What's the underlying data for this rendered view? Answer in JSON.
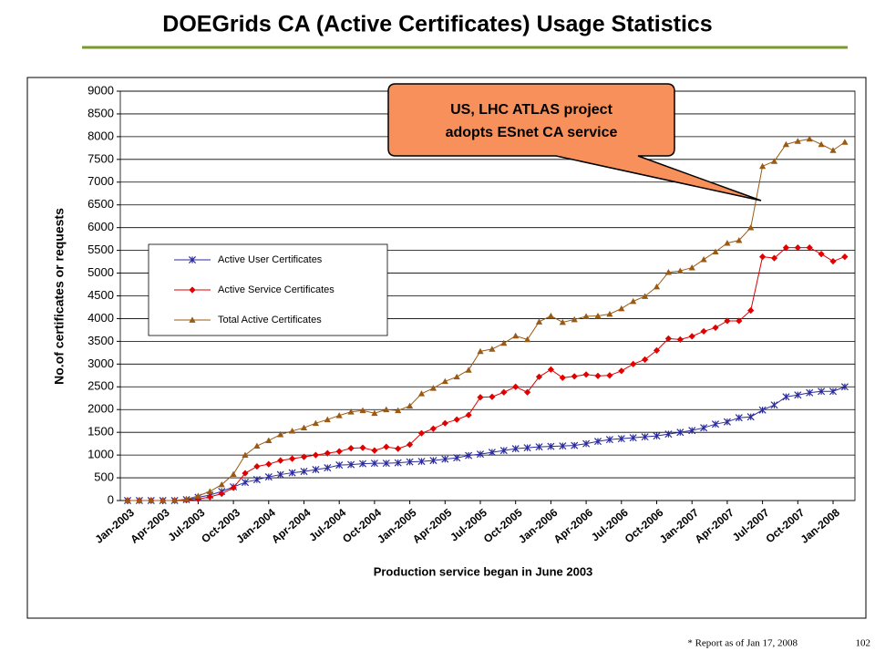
{
  "title": "DOEGrids CA (Active Certificates) Usage Statistics",
  "annotation": [
    "US, LHC ATLAS project",
    "adopts ESnet CA service"
  ],
  "footer": "* Report as of Jan 17, 2008",
  "page_number": "102",
  "chart_data": {
    "type": "line",
    "y_label": "No.of certificates or requests",
    "x_label": "Production service began in June 2003",
    "legend": "left",
    "grid": true,
    "ylim": [
      0,
      9000
    ],
    "yticks": [
      0,
      500,
      1000,
      1500,
      2000,
      2500,
      3000,
      3500,
      4000,
      4500,
      5000,
      5500,
      6000,
      6500,
      7000,
      7500,
      8000,
      8500,
      9000
    ],
    "categories": [
      "Jan-2003",
      null,
      null,
      "Apr-2003",
      null,
      null,
      "Jul-2003",
      null,
      null,
      "Oct-2003",
      null,
      null,
      "Jan-2004",
      null,
      null,
      "Apr-2004",
      null,
      null,
      "Jul-2004",
      null,
      null,
      "Oct-2004",
      null,
      null,
      "Jan-2005",
      null,
      null,
      "Apr-2005",
      null,
      null,
      "Jul-2005",
      null,
      null,
      "Oct-2005",
      null,
      null,
      "Jan-2006",
      null,
      null,
      "Apr-2006",
      null,
      null,
      "Jul-2006",
      null,
      null,
      "Oct-2006",
      null,
      null,
      "Jan-2007",
      null,
      null,
      "Apr-2007",
      null,
      null,
      "Jul-2007",
      null,
      null,
      "Oct-2007",
      null,
      null,
      "Jan-2008",
      null
    ],
    "series": [
      {
        "name": "Active User Certificates",
        "color": "#2b2b9e",
        "marker": "asterisk",
        "values": [
          0,
          0,
          0,
          0,
          0,
          20,
          70,
          120,
          200,
          300,
          400,
          460,
          520,
          570,
          610,
          640,
          680,
          720,
          780,
          790,
          810,
          820,
          820,
          830,
          850,
          860,
          880,
          910,
          940,
          990,
          1020,
          1060,
          1100,
          1140,
          1160,
          1180,
          1190,
          1200,
          1210,
          1250,
          1300,
          1340,
          1360,
          1380,
          1400,
          1420,
          1460,
          1500,
          1540,
          1600,
          1680,
          1730,
          1820,
          1840,
          1990,
          2100,
          2280,
          2320,
          2370,
          2400,
          2400,
          2500
        ]
      },
      {
        "name": "Active Service Certificates",
        "color": "#e00000",
        "marker": "diamond",
        "values": [
          0,
          0,
          0,
          0,
          0,
          10,
          30,
          80,
          150,
          280,
          600,
          750,
          800,
          880,
          920,
          960,
          1000,
          1040,
          1080,
          1150,
          1160,
          1100,
          1180,
          1140,
          1230,
          1480,
          1580,
          1700,
          1780,
          1880,
          2270,
          2280,
          2380,
          2500,
          2380,
          2720,
          2880,
          2700,
          2730,
          2770,
          2740,
          2750,
          2850,
          3000,
          3100,
          3300,
          3560,
          3540,
          3610,
          3720,
          3800,
          3950,
          3950,
          4180,
          5360,
          5330,
          5560,
          5560,
          5560,
          5420,
          5260,
          5360
        ]
      },
      {
        "name": "Total Active Certificates",
        "color": "#9a5a14",
        "marker": "triangle",
        "values": [
          0,
          0,
          0,
          0,
          0,
          30,
          100,
          200,
          350,
          580,
          1000,
          1200,
          1320,
          1450,
          1530,
          1600,
          1700,
          1780,
          1870,
          1950,
          1980,
          1920,
          2000,
          1980,
          2080,
          2350,
          2470,
          2620,
          2720,
          2870,
          3280,
          3330,
          3460,
          3620,
          3540,
          3930,
          4060,
          3920,
          3980,
          4050,
          4060,
          4100,
          4220,
          4380,
          4490,
          4700,
          5020,
          5050,
          5120,
          5300,
          5470,
          5660,
          5720,
          6000,
          7350,
          7460,
          7830,
          7900,
          7950,
          7830,
          7700,
          7880
        ]
      }
    ]
  }
}
